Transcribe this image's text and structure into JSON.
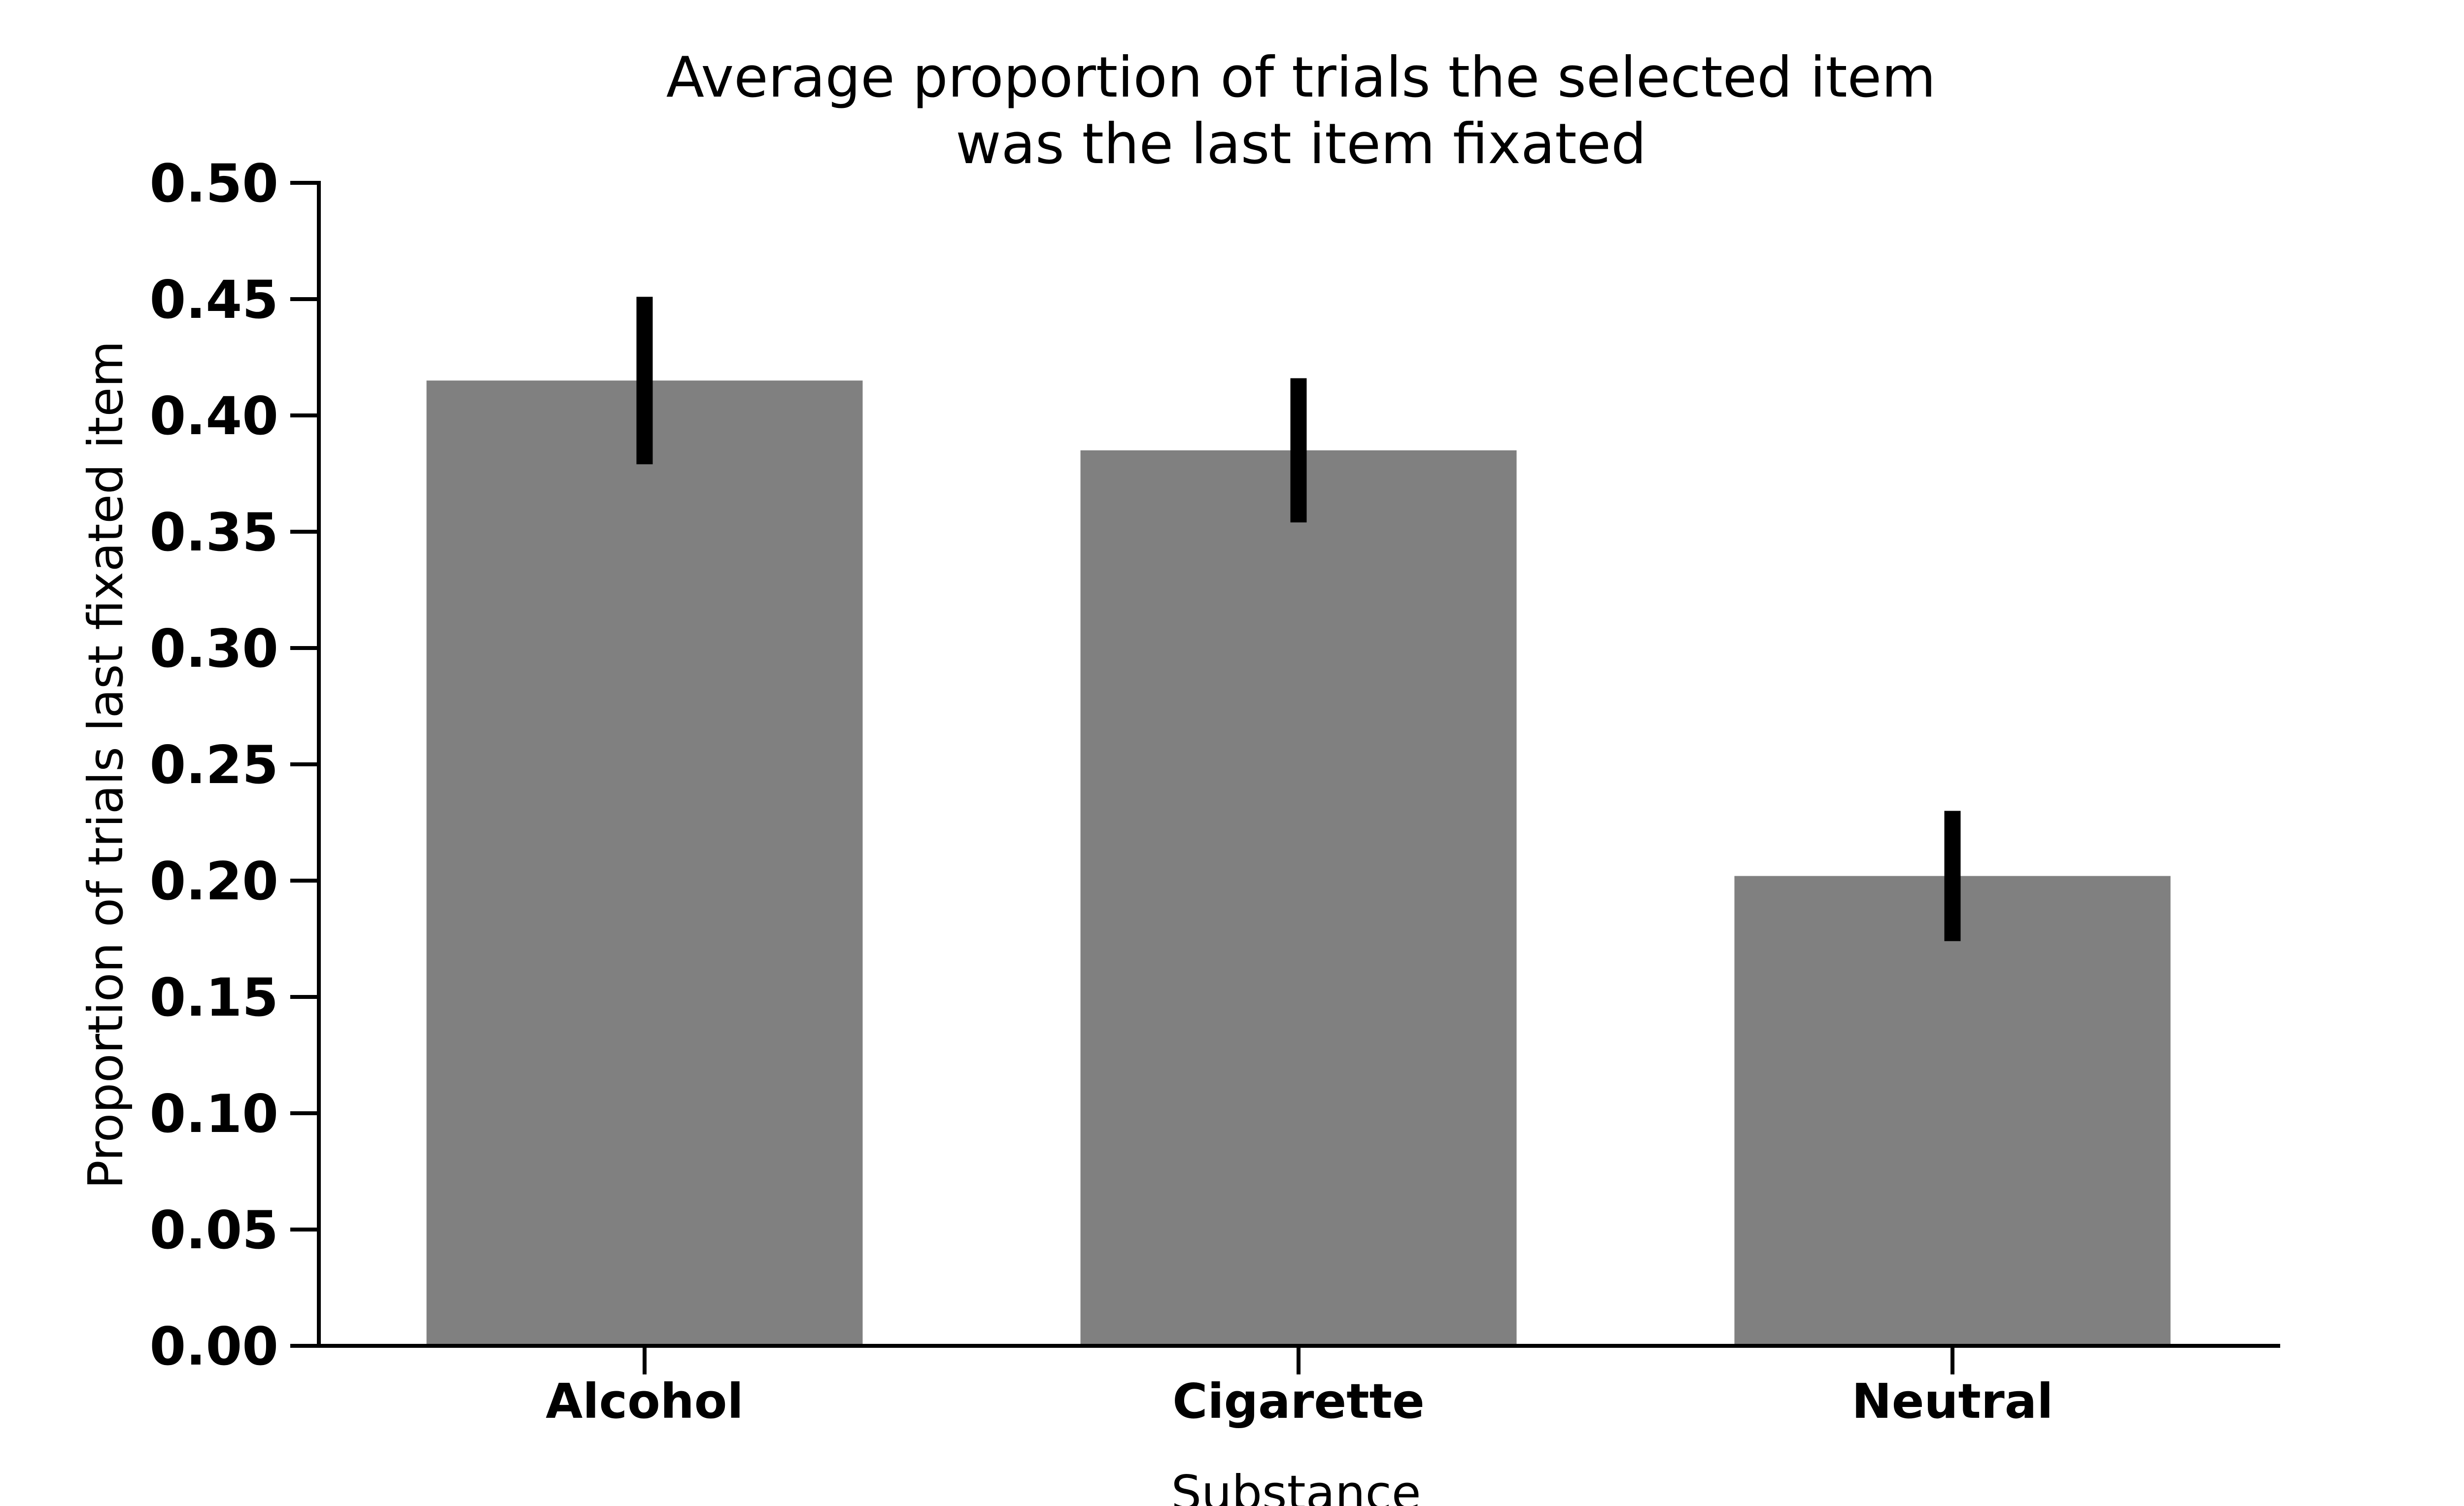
{
  "chart_data": {
    "type": "bar",
    "title": [
      "Average proportion of trials the selected item",
      "was the last item fixated"
    ],
    "xlabel": "Substance",
    "ylabel": "Proportion of trials last fixated item",
    "categories": [
      "Alcohol",
      "Cigarette",
      "Neutral"
    ],
    "values": [
      0.415,
      0.385,
      0.202
    ],
    "error_bars": [
      {
        "low": 0.379,
        "high": 0.451
      },
      {
        "low": 0.354,
        "high": 0.416
      },
      {
        "low": 0.174,
        "high": 0.23
      }
    ],
    "ylim": [
      0,
      0.5
    ],
    "yticks": [
      "0.00",
      "0.05",
      "0.10",
      "0.15",
      "0.20",
      "0.25",
      "0.30",
      "0.35",
      "0.40",
      "0.45",
      "0.50"
    ],
    "grid": false,
    "legend": "none",
    "colors": {
      "bar": "#808080",
      "error_bar": "#000000",
      "axis": "#000000"
    }
  }
}
